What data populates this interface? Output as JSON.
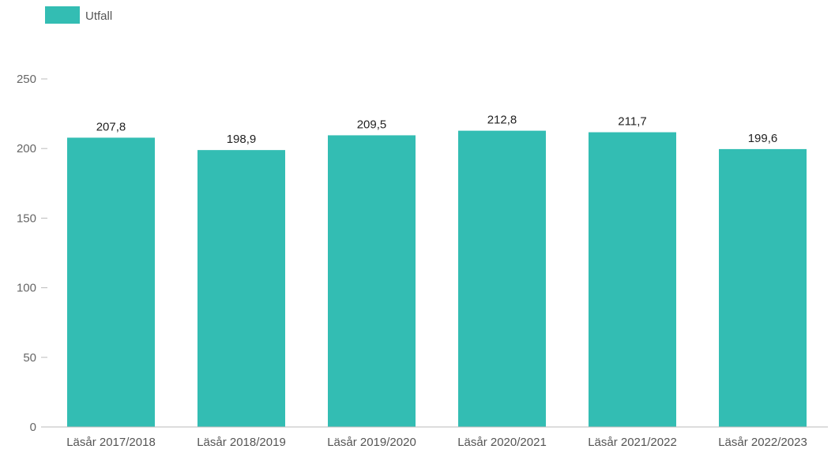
{
  "chart_data": {
    "type": "bar",
    "categories": [
      "Läsår 2017/2018",
      "Läsår 2018/2019",
      "Läsår 2019/2020",
      "Läsår 2020/2021",
      "Läsår 2021/2022",
      "Läsår 2022/2023"
    ],
    "series": [
      {
        "name": "Utfall",
        "values": [
          207.8,
          198.9,
          209.5,
          212.8,
          211.7,
          199.6
        ],
        "color": "#33bdb3"
      }
    ],
    "data_labels": [
      "207,8",
      "198,9",
      "209,5",
      "212,8",
      "211,7",
      "199,6"
    ],
    "yticks": [
      0,
      50,
      100,
      150,
      200,
      250
    ],
    "ylim": [
      0,
      250
    ],
    "grid": false,
    "legend_position": "top-left"
  }
}
